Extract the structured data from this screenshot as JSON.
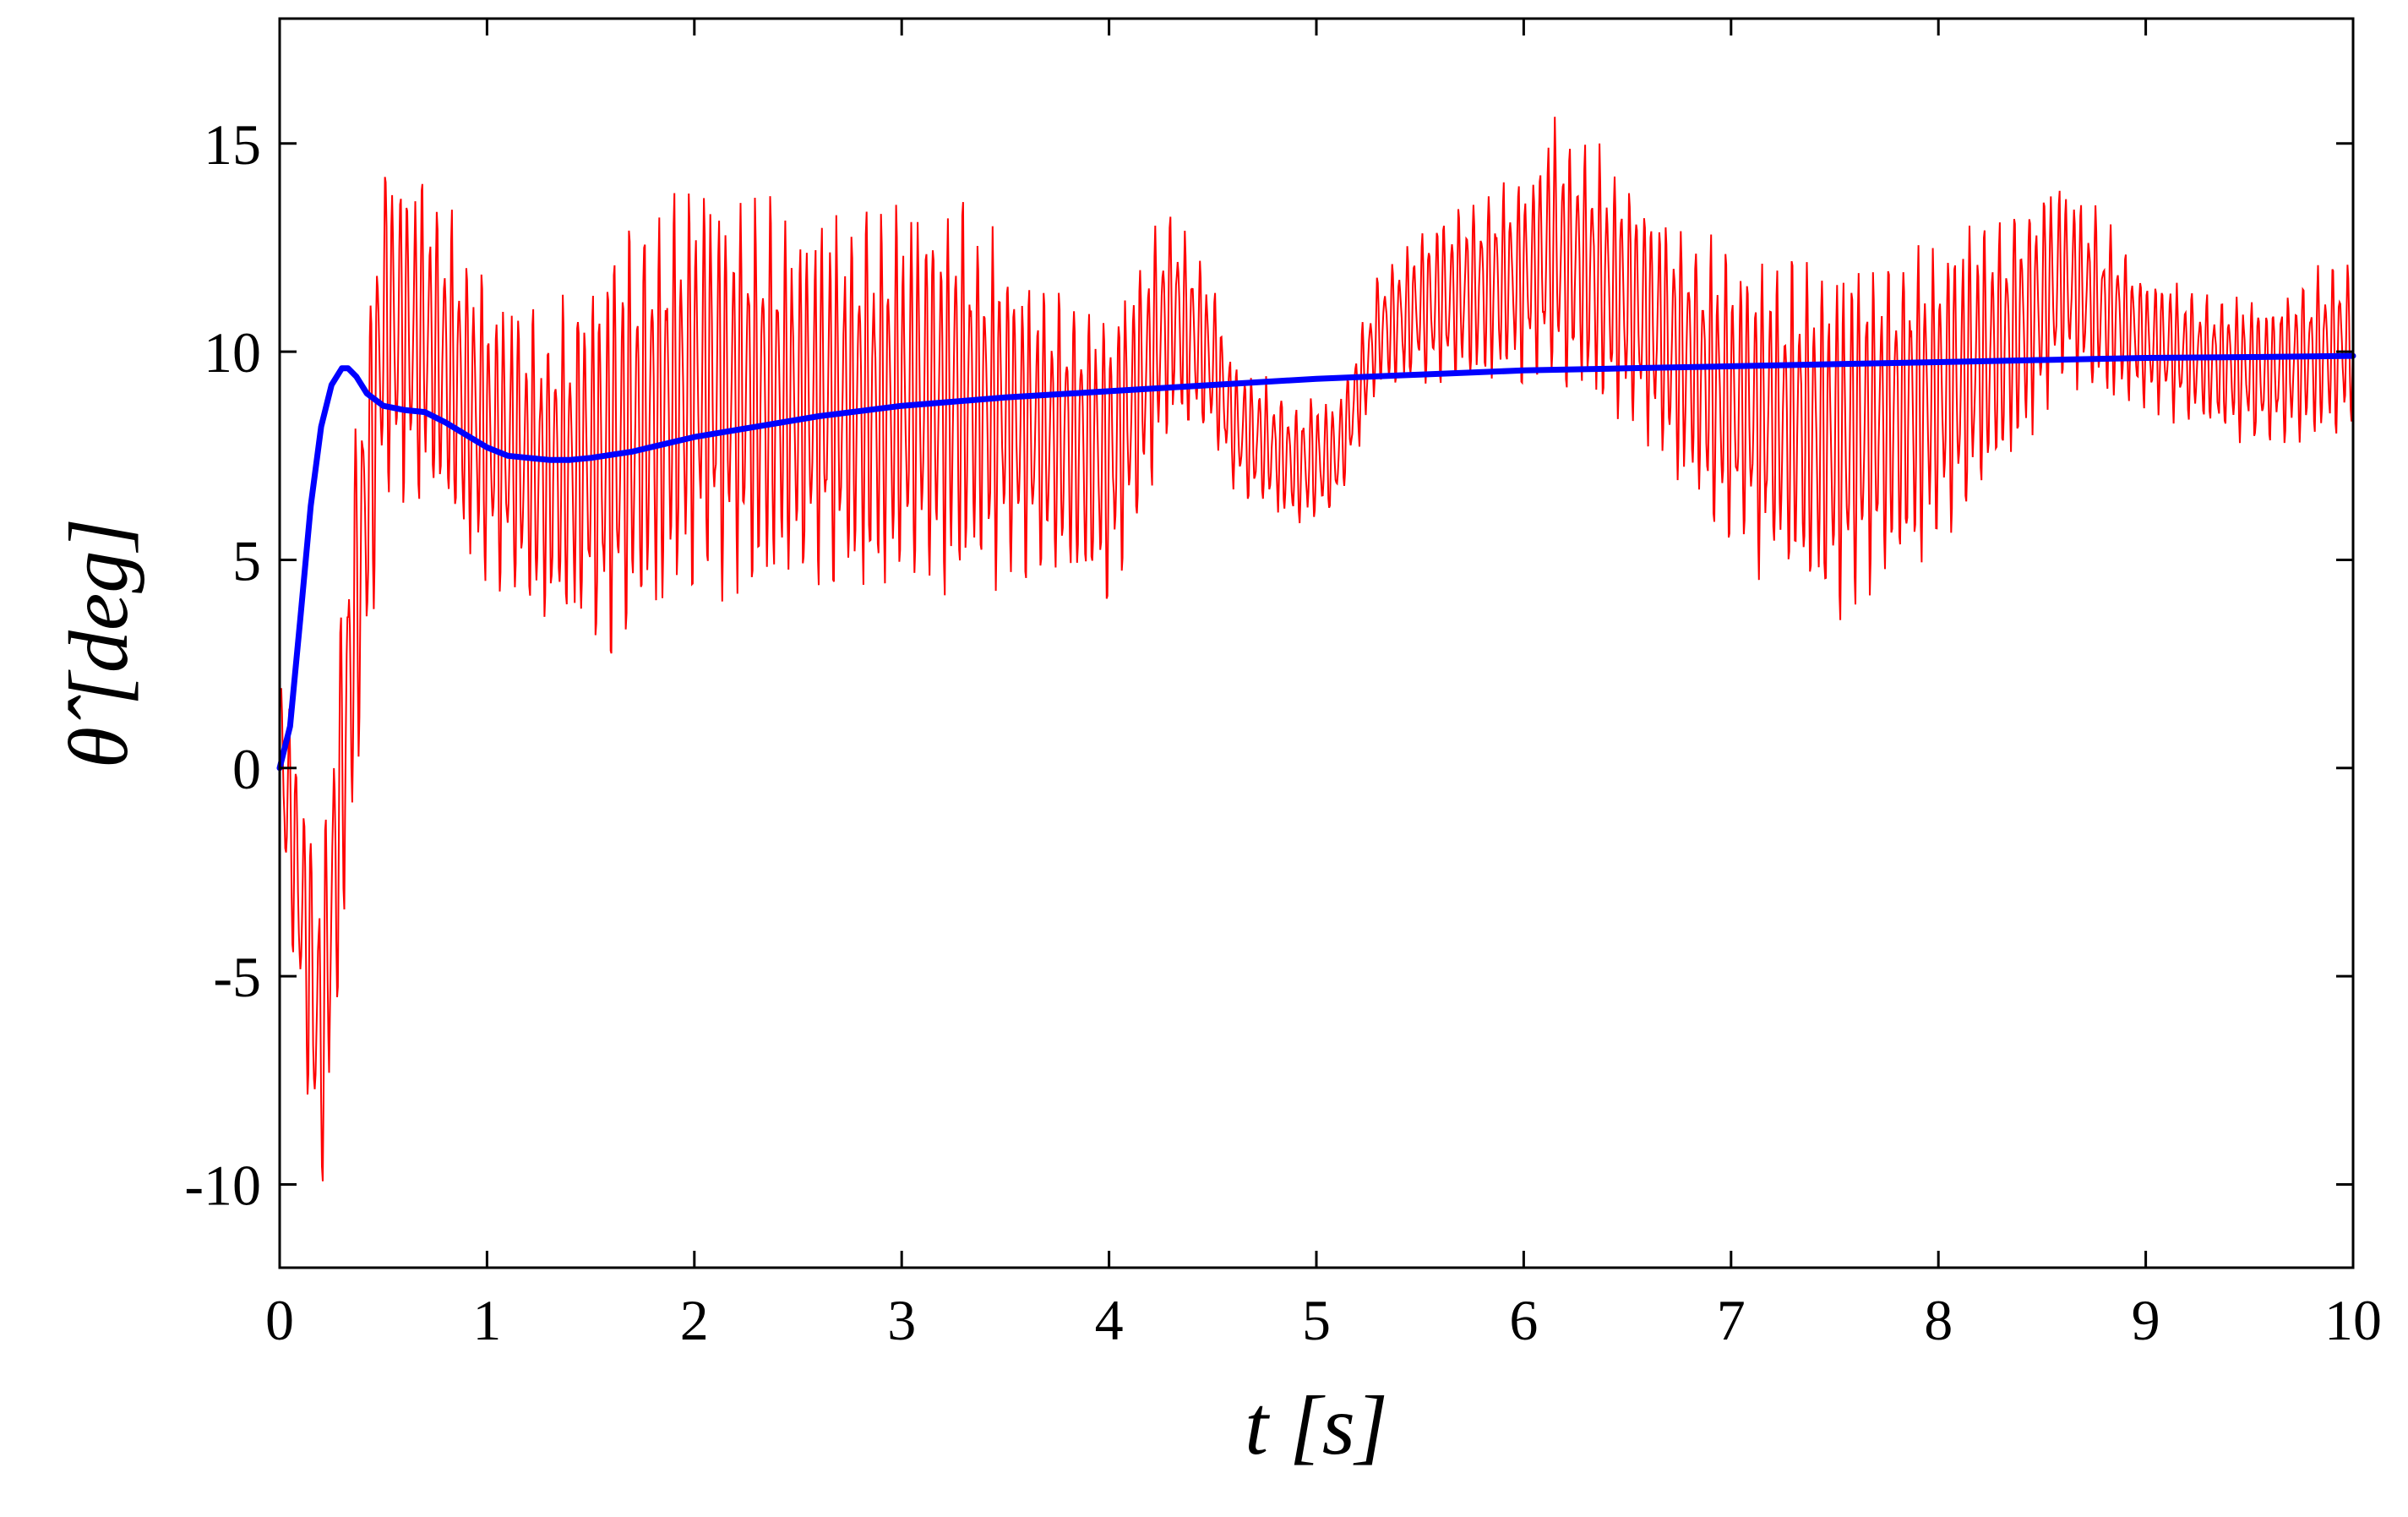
{
  "chart_data": {
    "type": "line",
    "title": "",
    "xlabel": "t  [s]",
    "ylabel": "θ̂  [deg]",
    "xlim": [
      0,
      10
    ],
    "ylim": [
      -12,
      18
    ],
    "xticks": [
      0,
      1,
      2,
      3,
      4,
      5,
      6,
      7,
      8,
      9,
      10
    ],
    "yticks": [
      -10,
      -5,
      0,
      5,
      10,
      15
    ],
    "x_tick_labels": [
      "0",
      "1",
      "2",
      "3",
      "4",
      "5",
      "6",
      "7",
      "8",
      "9",
      "10"
    ],
    "y_tick_labels": [
      "-10",
      "-5",
      "0",
      "5",
      "10",
      "15"
    ],
    "grid": false,
    "legend": "none",
    "series": [
      {
        "color": "#ff0000",
        "style": "noisy-oscillation",
        "envelope_upper": [
          [
            0,
            3
          ],
          [
            0.2,
            -2
          ],
          [
            0.35,
            8
          ],
          [
            0.5,
            15.5
          ],
          [
            0.7,
            14.5
          ],
          [
            1.0,
            12
          ],
          [
            1.3,
            11
          ],
          [
            1.6,
            13
          ],
          [
            2.0,
            14.5
          ],
          [
            2.5,
            13.5
          ],
          [
            3.0,
            14
          ],
          [
            3.3,
            14
          ],
          [
            3.6,
            12
          ],
          [
            4.0,
            11.5
          ],
          [
            4.3,
            13.8
          ],
          [
            4.5,
            12
          ],
          [
            4.6,
            10
          ],
          [
            4.9,
            9
          ],
          [
            5.1,
            9
          ],
          [
            5.3,
            12
          ],
          [
            5.6,
            13.5
          ],
          [
            6.0,
            14.5
          ],
          [
            6.15,
            15.8
          ],
          [
            6.5,
            14.5
          ],
          [
            7.0,
            12.5
          ],
          [
            7.5,
            12.5
          ],
          [
            8.0,
            13
          ],
          [
            8.3,
            13.5
          ],
          [
            8.6,
            14.5
          ],
          [
            9.0,
            12
          ],
          [
            9.3,
            11.5
          ],
          [
            9.6,
            11.5
          ],
          [
            10,
            12.5
          ]
        ],
        "envelope_lower": [
          [
            0,
            -2
          ],
          [
            0.2,
            -11.3
          ],
          [
            0.35,
            -2
          ],
          [
            0.5,
            6
          ],
          [
            0.7,
            6
          ],
          [
            1.0,
            4
          ],
          [
            1.3,
            3
          ],
          [
            1.6,
            2
          ],
          [
            2.0,
            4
          ],
          [
            2.5,
            4
          ],
          [
            3.0,
            3.5
          ],
          [
            3.3,
            4
          ],
          [
            3.6,
            4.5
          ],
          [
            4.0,
            3.5
          ],
          [
            4.3,
            8
          ],
          [
            4.5,
            7.5
          ],
          [
            4.6,
            6.5
          ],
          [
            4.9,
            5.5
          ],
          [
            5.1,
            6
          ],
          [
            5.3,
            9
          ],
          [
            5.6,
            9
          ],
          [
            6.0,
            9
          ],
          [
            6.15,
            9
          ],
          [
            6.5,
            8
          ],
          [
            7.0,
            5
          ],
          [
            7.5,
            3.2
          ],
          [
            8.0,
            5
          ],
          [
            8.3,
            6.5
          ],
          [
            8.6,
            9
          ],
          [
            9.0,
            8.5
          ],
          [
            9.3,
            8
          ],
          [
            9.6,
            7.5
          ],
          [
            10,
            8
          ]
        ]
      },
      {
        "color": "#0000ff",
        "style": "solid",
        "x": [
          0,
          0.05,
          0.1,
          0.15,
          0.2,
          0.25,
          0.3,
          0.33,
          0.37,
          0.42,
          0.5,
          0.6,
          0.7,
          0.8,
          0.9,
          1.0,
          1.1,
          1.2,
          1.3,
          1.4,
          1.5,
          1.7,
          2.0,
          2.3,
          2.6,
          3.0,
          3.5,
          4.0,
          4.5,
          5.0,
          5.5,
          6.0,
          6.5,
          7.0,
          7.5,
          8.0,
          8.5,
          9.0,
          9.5,
          10.0
        ],
        "y": [
          0,
          1.0,
          3.6,
          6.3,
          8.2,
          9.2,
          9.6,
          9.6,
          9.4,
          9.0,
          8.7,
          8.6,
          8.55,
          8.3,
          8.0,
          7.7,
          7.5,
          7.45,
          7.4,
          7.4,
          7.45,
          7.6,
          7.95,
          8.2,
          8.45,
          8.7,
          8.9,
          9.05,
          9.2,
          9.35,
          9.45,
          9.55,
          9.6,
          9.65,
          9.7,
          9.75,
          9.8,
          9.85,
          9.87,
          9.9
        ]
      }
    ]
  }
}
